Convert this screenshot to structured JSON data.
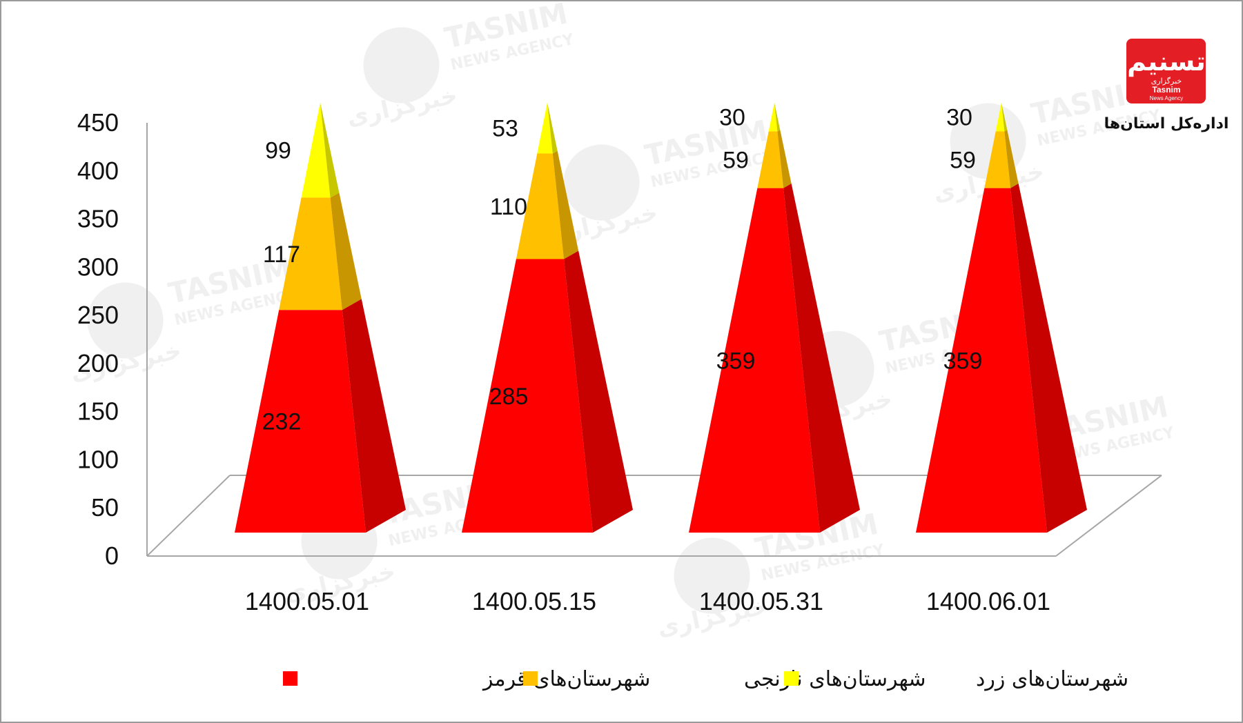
{
  "brand": {
    "logo_text": "تسنیم",
    "logo_sub_fa": "خبرگزاری",
    "logo_sub_en": "Tasnim",
    "logo_sub_en2": "News Agency",
    "department": "اداره‌کل استان‌ها",
    "accent": "#e31e24"
  },
  "watermark": {
    "latin_1": "TASNIM",
    "latin_2": "NEWS AGENCY",
    "persian_1": "خبرگزاری",
    "persian_2": "تسنیم"
  },
  "chart_data": {
    "type": "bar",
    "style": "3d-pyramid-stacked",
    "categories": [
      "1400.05.01",
      "1400.05.15",
      "1400.05.31",
      "1400.06.01"
    ],
    "series": [
      {
        "name": "شهرستان‌های قرمز",
        "color": "#ff0000",
        "values": [
          232,
          285,
          359,
          359
        ]
      },
      {
        "name": "شهرستان‌های نارنجی",
        "color": "#ffc000",
        "values": [
          117,
          110,
          59,
          59
        ]
      },
      {
        "name": "شهرستان‌های زرد",
        "color": "#ffff00",
        "values": [
          99,
          53,
          30,
          30
        ]
      }
    ],
    "data_labels": [
      [
        "232",
        "285",
        "359",
        "359"
      ],
      [
        "117",
        "110",
        "59",
        "59"
      ],
      [
        "99",
        "53",
        "30",
        "30"
      ]
    ],
    "y_ticks": [
      "0",
      "50",
      "100",
      "150",
      "200",
      "250",
      "300",
      "350",
      "400",
      "450"
    ],
    "ylim": [
      0,
      450
    ],
    "grid": false,
    "legend_position": "bottom"
  }
}
